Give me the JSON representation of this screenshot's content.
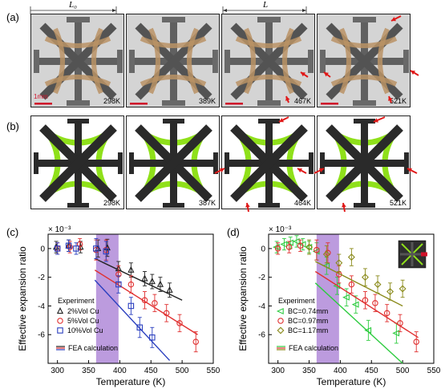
{
  "panels": {
    "a_label": "(a)",
    "b_label": "(b)",
    "c_label": "(c)",
    "d_label": "(d)"
  },
  "row_a": {
    "dim_left": "L₀",
    "dim_right": "L",
    "scale_bar": "1mm",
    "temps": [
      "298K",
      "389K",
      "467K",
      "521K"
    ]
  },
  "row_b": {
    "temps": [
      "298K",
      "387K",
      "464K",
      "521K"
    ]
  },
  "colors": {
    "black_series": "#222222",
    "red_series": "#e03030",
    "blue_series": "#2a3fbf",
    "green_series": "#2ecc40",
    "olive_series": "#8a8a1a",
    "band": "#a070d0",
    "arrow": "#e01818",
    "lime": "#8fe01a"
  },
  "chart_data": [
    {
      "type": "scatter",
      "panel": "(c)",
      "multiplier": "× 10⁻³",
      "xlabel": "Temperature (K)",
      "ylabel": "Effective expansion ratio",
      "xlim": [
        285,
        550
      ],
      "ylim": [
        -8,
        1
      ],
      "xticks": [
        "300",
        "350",
        "400",
        "450",
        "500",
        "550"
      ],
      "yticks": [
        "0",
        "-2",
        "-4",
        "-6"
      ],
      "band": [
        362,
        398
      ],
      "legend_title": "Experiment",
      "legend": [
        {
          "symbol": "triangle",
          "label": "2%Vol Cu",
          "color": "#222222"
        },
        {
          "symbol": "circle",
          "label": "5%Vol Cu",
          "color": "#e03030"
        },
        {
          "symbol": "square",
          "label": "10%Vol Cu",
          "color": "#2a3fbf"
        }
      ],
      "fea_label": "FEA calculation",
      "series": [
        {
          "name": "2%Vol Cu",
          "symbol": "triangle",
          "color": "#222222",
          "x": [
            298,
            318,
            337,
            365,
            380,
            398,
            418,
            440,
            452,
            465,
            480
          ],
          "y": [
            0.1,
            0.2,
            0.1,
            0.0,
            0.05,
            -1.4,
            -1.5,
            -2.1,
            -2.3,
            -2.5,
            -2.9
          ],
          "err": [
            0.4,
            0.4,
            0.4,
            0.6,
            0.6,
            0.5,
            0.5,
            0.5,
            0.5,
            0.5,
            0.5
          ],
          "fit": [
            [
              360,
              -0.7
            ],
            [
              500,
              -3.6
            ]
          ]
        },
        {
          "name": "5%Vol Cu",
          "symbol": "circle",
          "color": "#e03030",
          "x": [
            300,
            320,
            336,
            362,
            378,
            398,
            418,
            440,
            456,
            475,
            496,
            522
          ],
          "y": [
            0.0,
            0.1,
            0.3,
            -0.1,
            -0.1,
            -1.8,
            -2.5,
            -3.6,
            -3.8,
            -4.5,
            -5.2,
            -6.5
          ],
          "err": [
            0.4,
            0.4,
            0.4,
            0.7,
            0.7,
            0.6,
            0.6,
            0.6,
            0.6,
            0.6,
            0.6,
            0.7
          ],
          "fit": [
            [
              360,
              -1.5
            ],
            [
              525,
              -6.0
            ]
          ]
        },
        {
          "name": "10%Vol Cu",
          "symbol": "square",
          "color": "#2a3fbf",
          "x": [
            300,
            318,
            330,
            362,
            378,
            398,
            418,
            432,
            452
          ],
          "y": [
            0.0,
            0.2,
            0.0,
            0.0,
            -0.2,
            -2.5,
            -4.0,
            -5.5,
            -6.2
          ],
          "err": [
            0.4,
            0.4,
            0.4,
            0.7,
            0.7,
            0.6,
            0.6,
            0.7,
            0.7
          ],
          "fit": [
            [
              360,
              -2.2
            ],
            [
              480,
              -7.8
            ]
          ]
        }
      ]
    },
    {
      "type": "scatter",
      "panel": "(d)",
      "multiplier": "× 10⁻³",
      "xlabel": "Temperature (K)",
      "ylabel": "Effective expansion ratio",
      "xlim": [
        285,
        550
      ],
      "ylim": [
        -8,
        1
      ],
      "xticks": [
        "300",
        "350",
        "400",
        "450",
        "500",
        "550"
      ],
      "yticks": [
        "0",
        "-2",
        "-4",
        "-6"
      ],
      "band": [
        362,
        398
      ],
      "legend_title": "Experiment",
      "legend": [
        {
          "symbol": "tri-left",
          "label": "BC=0.74mm",
          "color": "#2ecc40"
        },
        {
          "symbol": "circle",
          "label": "BC=0.97mm",
          "color": "#e03030"
        },
        {
          "symbol": "diamond",
          "label": "BC=1.17mm",
          "color": "#8a8a1a"
        }
      ],
      "fea_label": "FEA calculation",
      "series": [
        {
          "name": "BC=0.74mm",
          "symbol": "tri-left",
          "color": "#2ecc40",
          "x": [
            298,
            310,
            320,
            330,
            340,
            350,
            362,
            378,
            395,
            410,
            425,
            445,
            490
          ],
          "y": [
            0.1,
            0.3,
            0.4,
            0.5,
            0.3,
            0.1,
            -0.2,
            -1.2,
            -2.6,
            -3.4,
            -3.9,
            -5.7,
            -5.9
          ],
          "err": [
            0.4,
            0.4,
            0.4,
            0.4,
            0.4,
            0.4,
            0.6,
            0.6,
            0.6,
            0.6,
            0.6,
            0.7,
            0.7
          ],
          "fit": [
            [
              360,
              -2.4
            ],
            [
              500,
              -8.0
            ]
          ]
        },
        {
          "name": "BC=0.97mm",
          "symbol": "circle",
          "color": "#e03030",
          "x": [
            300,
            318,
            336,
            362,
            380,
            398,
            418,
            440,
            456,
            475,
            496,
            522
          ],
          "y": [
            0.0,
            0.1,
            0.2,
            -0.1,
            -0.3,
            -1.8,
            -2.5,
            -3.6,
            -3.8,
            -4.5,
            -5.2,
            -6.5
          ],
          "err": [
            0.4,
            0.4,
            0.4,
            0.7,
            0.7,
            0.6,
            0.6,
            0.6,
            0.6,
            0.6,
            0.6,
            0.7
          ],
          "fit": [
            [
              360,
              -1.6
            ],
            [
              525,
              -6.2
            ]
          ]
        },
        {
          "name": "BC=1.17mm",
          "symbol": "diamond",
          "color": "#8a8a1a",
          "x": [
            350,
            378,
            398,
            418,
            440,
            460,
            480,
            500
          ],
          "y": [
            0.1,
            -0.4,
            -1.0,
            -0.6,
            -2.0,
            -2.5,
            -3.0,
            -2.8
          ],
          "err": [
            0.5,
            0.6,
            0.6,
            0.6,
            0.6,
            0.6,
            0.6,
            0.6
          ],
          "fit": [
            [
              360,
              -0.9
            ],
            [
              500,
              -4.0
            ]
          ]
        }
      ]
    }
  ]
}
